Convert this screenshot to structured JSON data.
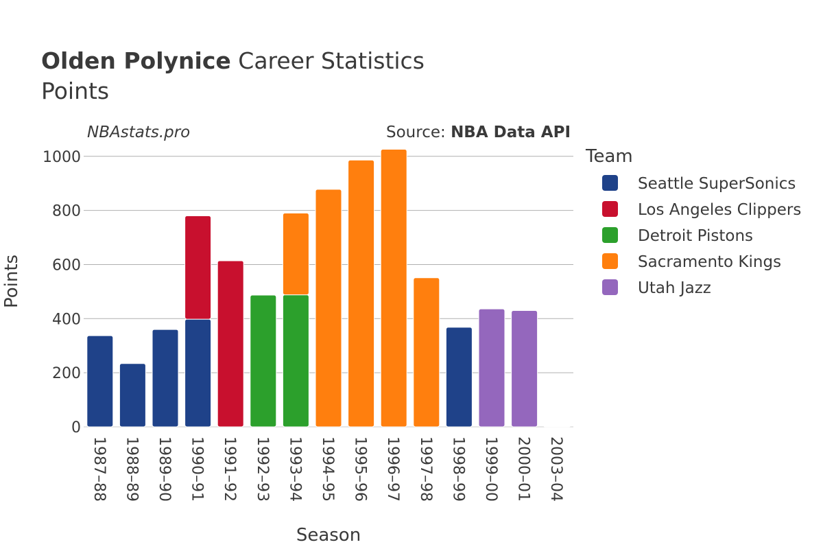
{
  "header": {
    "player_name": "Olden Polynice",
    "title_suffix": " Career Statistics",
    "subtitle": "Points",
    "site": "NBAstats.pro",
    "source_label": "Source: ",
    "source_name": "NBA Data API"
  },
  "legend": {
    "title": "Team",
    "items": [
      {
        "name": "Seattle SuperSonics",
        "color": "#1f4289"
      },
      {
        "name": "Los Angeles Clippers",
        "color": "#c8102e"
      },
      {
        "name": "Detroit Pistons",
        "color": "#2ca02c"
      },
      {
        "name": "Sacramento Kings",
        "color": "#ff7f0e"
      },
      {
        "name": "Utah Jazz",
        "color": "#9467bd"
      }
    ]
  },
  "chart_data": {
    "type": "bar",
    "stacked": true,
    "xlabel": "Season",
    "ylabel": "Points",
    "ylim": [
      0,
      1040
    ],
    "yticks": [
      0,
      200,
      400,
      600,
      800,
      1000
    ],
    "grid": true,
    "legend_position": "right",
    "categories": [
      "1987–88",
      "1988–89",
      "1989–90",
      "1990–91",
      "1991–92",
      "1992–93",
      "1993–94",
      "1994–95",
      "1995–96",
      "1996–97",
      "1997–98",
      "1998–99",
      "1999–00",
      "2000–01",
      "2003–04"
    ],
    "series": [
      {
        "name": "Seattle SuperSonics",
        "color": "#1f4289",
        "values": [
          337,
          234,
          360,
          398,
          0,
          0,
          0,
          0,
          0,
          0,
          0,
          368,
          0,
          0,
          0
        ]
      },
      {
        "name": "Los Angeles Clippers",
        "color": "#c8102e",
        "values": [
          0,
          0,
          0,
          382,
          614,
          0,
          0,
          0,
          0,
          0,
          0,
          0,
          0,
          0,
          0
        ]
      },
      {
        "name": "Detroit Pistons",
        "color": "#2ca02c",
        "values": [
          0,
          0,
          0,
          0,
          0,
          487,
          488,
          0,
          0,
          0,
          0,
          0,
          0,
          0,
          0
        ]
      },
      {
        "name": "Sacramento Kings",
        "color": "#ff7f0e",
        "values": [
          0,
          0,
          0,
          0,
          0,
          0,
          302,
          878,
          986,
          1026,
          551,
          0,
          0,
          0,
          0
        ]
      },
      {
        "name": "Utah Jazz",
        "color": "#9467bd",
        "values": [
          0,
          0,
          0,
          0,
          0,
          0,
          0,
          0,
          0,
          0,
          0,
          0,
          436,
          430,
          2
        ]
      }
    ]
  }
}
